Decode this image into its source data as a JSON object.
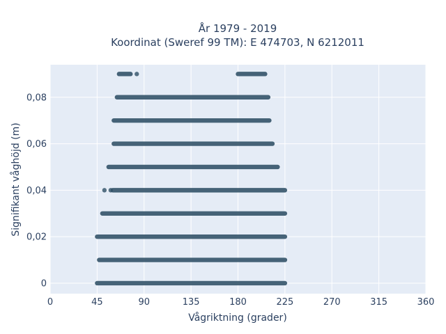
{
  "colors": {
    "plot_bg": "#e5ecf6",
    "grid": "#ffffff",
    "marker": "#2f5066",
    "text": "#2a3f5f"
  },
  "chart_data": {
    "type": "scatter",
    "title_line1": "År 1979 - 2019",
    "title_line2": "Koordinat (Sweref 99 TM): E 474703, N 6212011",
    "xlabel": "Vågriktning (grader)",
    "ylabel": "Signifikant våghöjd (m)",
    "xlim": [
      0,
      360
    ],
    "ylim": [
      -0.0045,
      0.094
    ],
    "x_ticks": [
      0,
      45,
      90,
      135,
      180,
      225,
      270,
      315,
      360
    ],
    "x_tick_labels": [
      "0",
      "45",
      "90",
      "135",
      "180",
      "225",
      "270",
      "315",
      "360"
    ],
    "y_ticks": [
      0,
      0.02,
      0.04,
      0.06,
      0.08
    ],
    "y_tick_labels": [
      "0",
      "0,02",
      "0,04",
      "0,06",
      "0,08"
    ],
    "grid": true,
    "legend": "none",
    "series": [
      {
        "levels": [
          {
            "y": 0.0,
            "segments": [
              [
                45,
                225
              ]
            ]
          },
          {
            "y": 0.01,
            "segments": [
              [
                47,
                225
              ]
            ]
          },
          {
            "y": 0.02,
            "segments": [
              [
                45,
                225
              ]
            ]
          },
          {
            "y": 0.03,
            "segments": [
              [
                50,
                225
              ]
            ]
          },
          {
            "y": 0.04,
            "segments": [
              [
                60,
                225
              ]
            ],
            "isolated": [
              52,
              58
            ]
          },
          {
            "y": 0.05,
            "segments": [
              [
                56,
                218
              ]
            ]
          },
          {
            "y": 0.06,
            "segments": [
              [
                61,
                213
              ]
            ]
          },
          {
            "y": 0.07,
            "segments": [
              [
                61,
                210
              ]
            ]
          },
          {
            "y": 0.08,
            "segments": [
              [
                64,
                209
              ]
            ]
          },
          {
            "y": 0.09,
            "segments": [
              [
                66,
                77
              ],
              [
                180,
                206
              ]
            ],
            "isolated": [
              83
            ]
          }
        ]
      }
    ]
  }
}
